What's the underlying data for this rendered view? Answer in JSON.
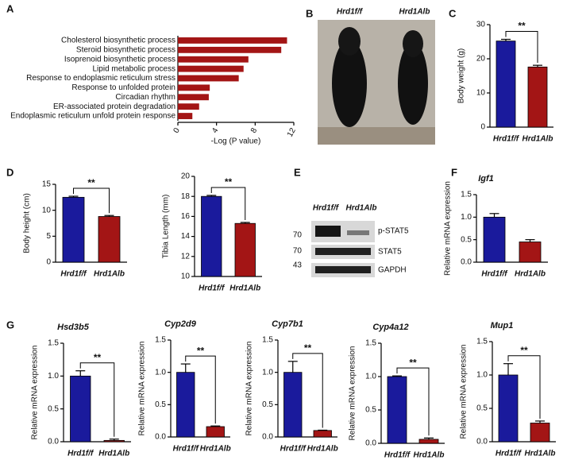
{
  "chart_data": [
    {
      "type": "bar",
      "panel": "A",
      "orientation": "horizontal",
      "color": "#a31515",
      "categories": [
        "Cholesterol biosynthetic process",
        "Steroid biosynthetic process",
        "Isoprenoid biosynthetic process",
        "Lipid metabolic process",
        "Response to endoplasmic reticulum stress",
        "Response to unfolded protein",
        "Circadian rhythm",
        "ER-associated protein degradation",
        "Endoplasmic reticulum unfold protein response"
      ],
      "values": [
        11.3,
        10.7,
        7.3,
        6.8,
        6.3,
        3.3,
        3.2,
        2.2,
        1.5
      ],
      "xlabel": "-Log (P value)",
      "xlim": [
        0,
        12
      ],
      "xticks": [
        0,
        4,
        8,
        12
      ]
    },
    {
      "type": "bar",
      "panel": "C",
      "ylabel": "Body weight (g)",
      "categories": [
        "Hrd1f/f",
        "Hrd1Alb"
      ],
      "colors": [
        "#1a1a9c",
        "#a31515"
      ],
      "values": [
        25.2,
        17.6
      ],
      "errors": [
        0.5,
        0.5
      ],
      "ylim": [
        0,
        30
      ],
      "yticks": [
        0,
        10,
        20,
        30
      ],
      "significance": "**"
    },
    {
      "type": "bar",
      "panel": "D",
      "ylabel": "Body height (cm)",
      "categories": [
        "Hrd1f/f",
        "Hrd1Alb"
      ],
      "colors": [
        "#1a1a9c",
        "#a31515"
      ],
      "values": [
        12.5,
        8.8
      ],
      "errors": [
        0.2,
        0.2
      ],
      "ylim": [
        0,
        15
      ],
      "yticks": [
        0,
        5,
        10,
        15
      ],
      "significance": "**"
    },
    {
      "type": "bar",
      "ylabel": "Tibia Length (mm)",
      "categories": [
        "Hrd1f/f",
        "Hrd1Alb"
      ],
      "colors": [
        "#1a1a9c",
        "#a31515"
      ],
      "values": [
        18.0,
        15.3
      ],
      "errors": [
        0.1,
        0.1
      ],
      "ylim": [
        10,
        20
      ],
      "yticks": [
        10,
        12,
        14,
        16,
        18,
        20
      ],
      "significance": "**"
    },
    {
      "type": "bar",
      "panel": "F",
      "title": "Igf1",
      "ylabel": "Relative mRNA expression",
      "categories": [
        "Hrd1f/f",
        "Hrd1Alb"
      ],
      "colors": [
        "#1a1a9c",
        "#a31515"
      ],
      "values": [
        1.0,
        0.45
      ],
      "errors": [
        0.08,
        0.05
      ],
      "ylim": [
        0,
        1.5
      ],
      "yticks": [
        {
          "value": 0,
          "label": "0.0"
        },
        0.5,
        {
          "value": 1,
          "label": "1.0"
        },
        1.5
      ]
    },
    {
      "type": "bar",
      "panel": "G",
      "title": "Hsd3b5",
      "ylabel": "Relative mRNA expression",
      "categories": [
        "Hrd1f/f",
        "Hrd1Alb"
      ],
      "colors": [
        "#1a1a9c",
        "#a31515"
      ],
      "values": [
        1.0,
        0.02
      ],
      "errors": [
        0.08,
        0.02
      ],
      "ylim": [
        0,
        1.5
      ],
      "yticks": [
        {
          "value": 0,
          "label": "0.0"
        },
        0.5,
        {
          "value": 1,
          "label": "1.0"
        },
        1.5
      ],
      "significance": "**"
    },
    {
      "type": "bar",
      "title": "Cyp2d9",
      "ylabel": "Relative mRNA expression",
      "categories": [
        "Hrd1f/f",
        "Hrd1Alb"
      ],
      "colors": [
        "#1a1a9c",
        "#a31515"
      ],
      "values": [
        1.0,
        0.16
      ],
      "errors": [
        0.13,
        0.01
      ],
      "ylim": [
        0,
        1.5
      ],
      "yticks": [
        {
          "value": 0,
          "label": "0.0"
        },
        0.5,
        {
          "value": 1,
          "label": "1.0"
        },
        1.5
      ],
      "significance": "**"
    },
    {
      "type": "bar",
      "title": "Cyp7b1",
      "ylabel": "Relative mRNA expression",
      "categories": [
        "Hrd1f/f",
        "Hrd1Alb"
      ],
      "colors": [
        "#1a1a9c",
        "#a31515"
      ],
      "values": [
        1.0,
        0.1
      ],
      "errors": [
        0.17,
        0.005
      ],
      "ylim": [
        0,
        1.5
      ],
      "yticks": [
        {
          "value": 0,
          "label": "0.0"
        },
        0.5,
        {
          "value": 1,
          "label": "1.0"
        },
        1.5
      ],
      "significance": "**"
    },
    {
      "type": "bar",
      "title": "Cyp4a12",
      "ylabel": "Relative mRNA expression",
      "categories": [
        "Hrd1f/f",
        "Hrd1Alb"
      ],
      "colors": [
        "#1a1a9c",
        "#a31515"
      ],
      "values": [
        1.0,
        0.06
      ],
      "errors": [
        0.01,
        0.02
      ],
      "ylim": [
        0,
        1.5
      ],
      "yticks": [
        {
          "value": 0,
          "label": "0.0"
        },
        0.5,
        {
          "value": 1,
          "label": "1.0"
        },
        1.5
      ],
      "significance": "**"
    },
    {
      "type": "bar",
      "title": "Mup1",
      "ylabel": "Relative mRNA expression",
      "categories": [
        "Hrd1f/f",
        "Hrd1Alb"
      ],
      "colors": [
        "#1a1a9c",
        "#a31515"
      ],
      "values": [
        1.0,
        0.28
      ],
      "errors": [
        0.17,
        0.03
      ],
      "ylim": [
        0,
        1.5
      ],
      "yticks": [
        {
          "value": 0,
          "label": "0.0"
        },
        0.5,
        {
          "value": 1,
          "label": "1.0"
        },
        1.5
      ],
      "significance": "**"
    }
  ],
  "photo": {
    "panel": "B",
    "labels": [
      "Hrd1f/f",
      "Hrd1Alb"
    ]
  },
  "blot": {
    "panel": "E",
    "lanes": [
      "Hrd1f/f",
      "Hrd1Alb"
    ],
    "bands": [
      "p-STAT5",
      "STAT5",
      "GAPDH"
    ],
    "markers": [
      70,
      70,
      43
    ]
  }
}
